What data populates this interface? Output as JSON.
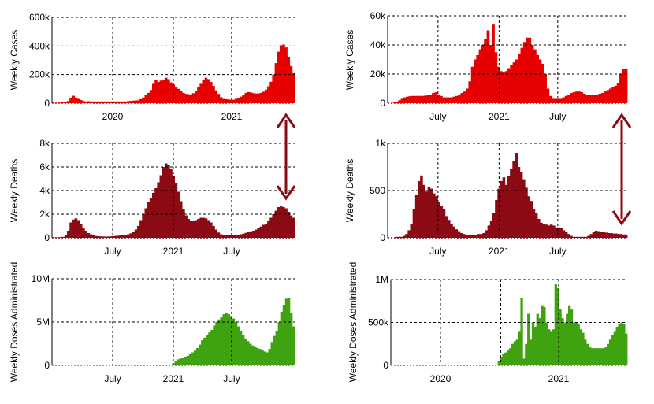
{
  "colors": {
    "cases": "#e60000",
    "deaths": "#8b0a14",
    "doses": "#3fa30f",
    "arrow": "#8b0a14",
    "grid": "#000000"
  },
  "chart_data": [
    {
      "id": "left-cases",
      "type": "area",
      "ylabel": "Weekly Cases",
      "ylim": [
        0,
        600000
      ],
      "yticks": [
        {
          "v": 0,
          "label": "0"
        },
        {
          "v": 200000,
          "label": "200k"
        },
        {
          "v": 400000,
          "label": "400k"
        },
        {
          "v": 600000,
          "label": "600k"
        }
      ],
      "xlim": [
        0,
        100
      ],
      "xticks": [
        {
          "x": 25,
          "label": "2020"
        },
        {
          "x": 50,
          "label": ""
        },
        {
          "x": 74,
          "label": "2021"
        }
      ],
      "values": [
        0,
        2000,
        3000,
        4000,
        6000,
        8000,
        15000,
        38000,
        52000,
        40000,
        30000,
        22000,
        15000,
        12000,
        14000,
        12000,
        12000,
        12000,
        12000,
        12000,
        12000,
        12000,
        12000,
        12000,
        12000,
        12000,
        12000,
        12000,
        12000,
        12000,
        15000,
        16000,
        18000,
        19000,
        20000,
        28000,
        40000,
        55000,
        72000,
        92000,
        135000,
        160000,
        148000,
        158000,
        165000,
        178000,
        168000,
        145000,
        130000,
        115000,
        100000,
        85000,
        72000,
        65000,
        62000,
        62000,
        70000,
        88000,
        110000,
        135000,
        160000,
        178000,
        168000,
        148000,
        120000,
        90000,
        65000,
        42000,
        30000,
        28000,
        26000,
        24000,
        24000,
        30000,
        36000,
        46000,
        58000,
        72000,
        78000,
        75000,
        70000,
        68000,
        68000,
        72000,
        80000,
        95000,
        118000,
        150000,
        200000,
        280000,
        360000,
        405000,
        410000,
        390000,
        325000,
        260000,
        210000
      ]
    },
    {
      "id": "left-deaths",
      "type": "area",
      "ylabel": "Weekly Deaths",
      "ylim": [
        0,
        8000
      ],
      "yticks": [
        {
          "v": 0,
          "label": "0"
        },
        {
          "v": 2000,
          "label": "2k"
        },
        {
          "v": 4000,
          "label": "4k"
        },
        {
          "v": 6000,
          "label": "6k"
        },
        {
          "v": 8000,
          "label": "8k"
        }
      ],
      "xlim": [
        0,
        100
      ],
      "xticks": [
        {
          "x": 25,
          "label": "July"
        },
        {
          "x": 50,
          "label": "2021"
        },
        {
          "x": 74,
          "label": "July"
        }
      ],
      "values": [
        0,
        30,
        40,
        50,
        80,
        200,
        600,
        1300,
        1550,
        1650,
        1500,
        1200,
        850,
        600,
        400,
        300,
        200,
        150,
        130,
        120,
        110,
        100,
        110,
        120,
        140,
        160,
        180,
        200,
        230,
        260,
        300,
        380,
        500,
        700,
        1000,
        1500,
        2000,
        2500,
        3000,
        3400,
        3800,
        4200,
        4700,
        5300,
        6000,
        6300,
        6200,
        5800,
        5200,
        4600,
        3900,
        3100,
        2400,
        1900,
        1600,
        1400,
        1400,
        1500,
        1600,
        1700,
        1700,
        1650,
        1500,
        1300,
        1000,
        700,
        450,
        300,
        250,
        220,
        200,
        210,
        220,
        240,
        260,
        300,
        350,
        420,
        500,
        550,
        600,
        700,
        800,
        950,
        1100,
        1200,
        1400,
        1700,
        2000,
        2300,
        2600,
        2700,
        2600,
        2500,
        2200,
        1900,
        1700
      ]
    },
    {
      "id": "left-doses",
      "type": "area",
      "ylabel": "Weekly Doses Administrated",
      "ylim": [
        0,
        10000000
      ],
      "yticks": [
        {
          "v": 0,
          "label": "0"
        },
        {
          "v": 5000000,
          "label": "5M"
        },
        {
          "v": 10000000,
          "label": "10M"
        }
      ],
      "xlim": [
        0,
        100
      ],
      "xticks": [
        {
          "x": 25,
          "label": "July"
        },
        {
          "x": 50,
          "label": "2021"
        },
        {
          "x": 74,
          "label": "July"
        }
      ],
      "values": [
        0,
        0,
        0,
        0,
        0,
        0,
        0,
        0,
        0,
        0,
        0,
        0,
        0,
        0,
        0,
        0,
        0,
        0,
        0,
        0,
        0,
        0,
        0,
        0,
        0,
        0,
        0,
        0,
        0,
        0,
        0,
        0,
        0,
        0,
        0,
        0,
        0,
        0,
        0,
        0,
        0,
        0,
        0,
        0,
        0,
        0,
        0,
        0,
        0,
        0,
        250000,
        500000,
        700000,
        800000,
        900000,
        1000000,
        1100000,
        1300000,
        1500000,
        1700000,
        2000000,
        2400000,
        2900000,
        3200000,
        3500000,
        3800000,
        4100000,
        4600000,
        5000000,
        5300000,
        5600000,
        5900000,
        6000000,
        5900000,
        5700000,
        5400000,
        5000000,
        4500000,
        4000000,
        3500000,
        3100000,
        2800000,
        2500000,
        2300000,
        2100000,
        2000000,
        1900000,
        1800000,
        1600000,
        1500000,
        1900000,
        2700000,
        3400000,
        4000000,
        5000000,
        6200000,
        7000000,
        7700000,
        7800000,
        6000000,
        4500000
      ]
    },
    {
      "id": "right-cases",
      "type": "area",
      "ylabel": "Weekly Cases",
      "ylim": [
        0,
        60000
      ],
      "yticks": [
        {
          "v": 0,
          "label": "0"
        },
        {
          "v": 20000,
          "label": "20k"
        },
        {
          "v": 40000,
          "label": "40k"
        },
        {
          "v": 60000,
          "label": "60k"
        }
      ],
      "xlim": [
        0,
        100
      ],
      "xticks": [
        {
          "x": 21,
          "label": "July"
        },
        {
          "x": 46.5,
          "label": "2021"
        },
        {
          "x": 71,
          "label": "July"
        }
      ],
      "values": [
        0,
        0,
        500,
        1000,
        2000,
        3000,
        4000,
        4500,
        4800,
        5000,
        5000,
        5000,
        5000,
        5000,
        5200,
        5500,
        6000,
        7000,
        7500,
        6000,
        5000,
        4000,
        4000,
        4000,
        4000,
        4500,
        5000,
        6000,
        7000,
        8000,
        10000,
        15000,
        25000,
        30000,
        33000,
        37000,
        40000,
        44000,
        50000,
        40000,
        54000,
        35000,
        25000,
        22000,
        21000,
        22000,
        24000,
        26000,
        28000,
        30000,
        34000,
        38000,
        42000,
        45000,
        45000,
        40000,
        37000,
        33000,
        30000,
        27000,
        20000,
        10000,
        5000,
        3000,
        3000,
        3000,
        3000,
        4000,
        5000,
        6000,
        7000,
        7500,
        8000,
        8000,
        7500,
        6500,
        5500,
        5500,
        5500,
        5500,
        6000,
        6500,
        7000,
        8000,
        9000,
        10000,
        11000,
        12000,
        14000,
        20000,
        23500,
        23500
      ]
    },
    {
      "id": "right-deaths",
      "type": "area",
      "ylabel": "Weekly Deaths",
      "ylim": [
        0,
        1000
      ],
      "yticks": [
        {
          "v": 0,
          "label": "0"
        },
        {
          "v": 500,
          "label": "500"
        },
        {
          "v": 1000,
          "label": "1k"
        }
      ],
      "xlim": [
        0,
        100
      ],
      "xticks": [
        {
          "x": 21,
          "label": "July"
        },
        {
          "x": 46.5,
          "label": "2021"
        },
        {
          "x": 71,
          "label": "July"
        }
      ],
      "values": [
        0,
        0,
        0,
        10,
        10,
        10,
        20,
        40,
        80,
        150,
        300,
        450,
        600,
        660,
        560,
        490,
        540,
        520,
        470,
        440,
        380,
        340,
        300,
        230,
        190,
        150,
        120,
        90,
        70,
        50,
        40,
        30,
        30,
        30,
        30,
        30,
        40,
        40,
        50,
        80,
        130,
        180,
        260,
        400,
        520,
        600,
        640,
        560,
        650,
        730,
        810,
        900,
        750,
        700,
        620,
        530,
        440,
        390,
        300,
        260,
        200,
        160,
        150,
        140,
        130,
        140,
        130,
        110,
        110,
        100,
        80,
        60,
        40,
        20,
        10,
        10,
        10,
        10,
        10,
        10,
        20,
        40,
        60,
        75,
        70,
        65,
        60,
        55,
        50,
        50,
        45,
        45,
        40,
        40,
        35,
        35
      ]
    },
    {
      "id": "right-doses",
      "type": "area",
      "ylabel": "Weekly Doses Administrated",
      "ylim": [
        0,
        1000000
      ],
      "yticks": [
        {
          "v": 0,
          "label": "0"
        },
        {
          "v": 500000,
          "label": "500k"
        },
        {
          "v": 1000000,
          "label": "1M"
        }
      ],
      "xlim": [
        0,
        100
      ],
      "xticks": [
        {
          "x": 21,
          "label": "2020"
        },
        {
          "x": 46.5,
          "label": ""
        },
        {
          "x": 71,
          "label": "2021"
        }
      ],
      "values": [
        0,
        0,
        0,
        0,
        0,
        0,
        0,
        0,
        0,
        0,
        0,
        0,
        0,
        0,
        0,
        0,
        0,
        0,
        0,
        0,
        0,
        0,
        0,
        0,
        0,
        0,
        0,
        0,
        0,
        0,
        0,
        0,
        0,
        0,
        0,
        0,
        0,
        0,
        0,
        0,
        0,
        0,
        0,
        0,
        0,
        0,
        0,
        50000,
        100000,
        130000,
        150000,
        180000,
        200000,
        250000,
        280000,
        300000,
        400000,
        780000,
        80000,
        250000,
        600000,
        300000,
        500000,
        450000,
        600000,
        550000,
        700000,
        680000,
        500000,
        420000,
        400000,
        420000,
        950000,
        900000,
        650000,
        550000,
        500000,
        600000,
        700000,
        650000,
        500000,
        500000,
        480000,
        420000,
        380000,
        300000,
        250000,
        220000,
        200000,
        200000,
        200000,
        200000,
        200000,
        200000,
        210000,
        250000,
        300000,
        350000,
        400000,
        450000,
        480000,
        500000,
        480000,
        370000
      ]
    }
  ]
}
